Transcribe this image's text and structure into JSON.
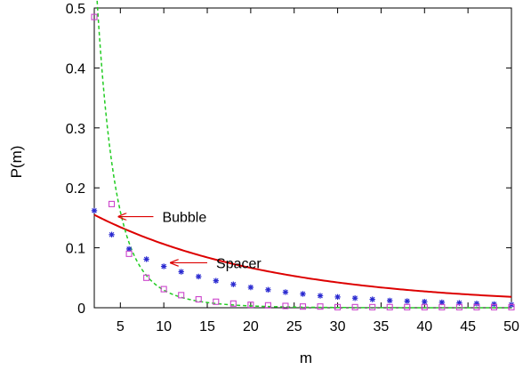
{
  "chart_data": {
    "type": "line",
    "xlabel": "m",
    "ylabel": "P(m)",
    "xlim": [
      2,
      50
    ],
    "ylim": [
      0,
      0.5
    ],
    "xticks": [
      5,
      10,
      15,
      20,
      25,
      30,
      35,
      40,
      45,
      50
    ],
    "yticks": [
      0,
      0.1,
      0.2,
      0.3,
      0.4,
      0.5
    ],
    "grid": false,
    "colors": {
      "spacer_line": "#dd0000",
      "spacer_markers": "#2a2ad0",
      "bubble_line": "#22cc22",
      "bubble_markers": "#cc44cc",
      "arrow": "#dd0000"
    },
    "series": [
      {
        "key": "spacer",
        "line": "solid",
        "marker": "asterisk",
        "x": [
          2,
          4,
          6,
          8,
          10,
          12,
          14,
          16,
          18,
          20,
          22,
          24,
          26,
          28,
          30,
          32,
          34,
          36,
          38,
          40,
          42,
          44,
          46,
          48,
          50
        ],
        "values": [
          0.162,
          0.122,
          0.098,
          0.081,
          0.069,
          0.06,
          0.052,
          0.045,
          0.039,
          0.034,
          0.03,
          0.026,
          0.023,
          0.02,
          0.018,
          0.016,
          0.014,
          0.012,
          0.011,
          0.01,
          0.009,
          0.008,
          0.007,
          0.006,
          0.005
        ]
      },
      {
        "key": "bubble",
        "line": "dashed",
        "marker": "square",
        "x": [
          2,
          4,
          6,
          8,
          10,
          12,
          14,
          16,
          18,
          20,
          22,
          24,
          26,
          28,
          30,
          32,
          34,
          36,
          38,
          40,
          42,
          44,
          46,
          48,
          50
        ],
        "values": [
          0.485,
          0.173,
          0.09,
          0.05,
          0.031,
          0.021,
          0.014,
          0.01,
          0.007,
          0.005,
          0.004,
          0.003,
          0.002,
          0.002,
          0.001,
          0.001,
          0.001,
          0.001,
          0.001,
          0.001,
          0.001,
          0.001,
          0.001,
          0.001,
          0.001
        ]
      }
    ],
    "annotations": [
      {
        "text": "Bubble",
        "target_series": "bubble",
        "arrow_tip": [
          4.8,
          0.152
        ],
        "arrow_tail": [
          8.8,
          0.152
        ]
      },
      {
        "text": "Spacer",
        "target_series": "spacer",
        "arrow_tip": [
          10.8,
          0.075
        ],
        "arrow_tail": [
          15.0,
          0.075
        ]
      }
    ]
  }
}
